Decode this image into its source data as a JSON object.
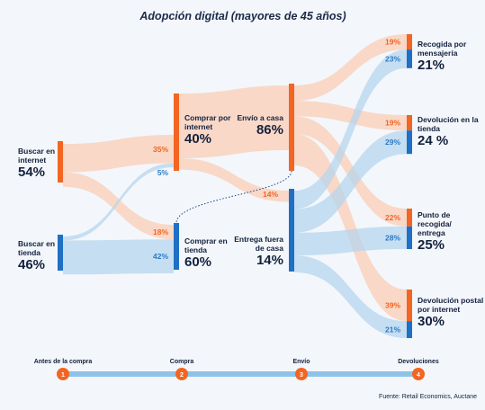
{
  "title": "Adopción digital (mayores de 45 años)",
  "nodes": [
    {
      "label": "Buscar en internet",
      "value": "54%"
    },
    {
      "label": "Buscar en tienda",
      "value": "46%"
    },
    {
      "label": "Comprar por internet",
      "value": "40%"
    },
    {
      "label": "Comprar en tienda",
      "value": "60%"
    },
    {
      "label": "Envío a casa",
      "value": "86%"
    },
    {
      "label": "Entrega fuera de casa",
      "value": "14%"
    },
    {
      "label": "Recogida por mensajería",
      "value": "21%"
    },
    {
      "label": "Devolución en la tienda",
      "value": "24 %"
    },
    {
      "label": "Punto de recogida/ entrega",
      "value": "25%"
    },
    {
      "label": "Devolución postal por internet",
      "value": "30%"
    }
  ],
  "flows": [
    {
      "value": 35,
      "label": "35%"
    },
    {
      "value": 18,
      "label": "18%"
    },
    {
      "value": 5,
      "label": "5%"
    },
    {
      "value": 42,
      "label": "42%"
    },
    {
      "value": 14,
      "label": "14%"
    },
    {
      "value": 19,
      "label": "19%"
    },
    {
      "value": 19,
      "label": "19%"
    },
    {
      "value": 22,
      "label": "22%"
    },
    {
      "value": 39,
      "label": "39%"
    },
    {
      "value": 23,
      "label": "23%"
    },
    {
      "value": 29,
      "label": "29%"
    },
    {
      "value": 28,
      "label": "28%"
    },
    {
      "value": 21,
      "label": "21%"
    }
  ],
  "timeline": [
    {
      "step": "1",
      "label": "Antes de la compra"
    },
    {
      "step": "2",
      "label": "Compra"
    },
    {
      "step": "3",
      "label": "Envío"
    },
    {
      "step": "4",
      "label": "Devoluciones"
    }
  ],
  "source": "Fuente: Retail Economics, Auctane"
}
